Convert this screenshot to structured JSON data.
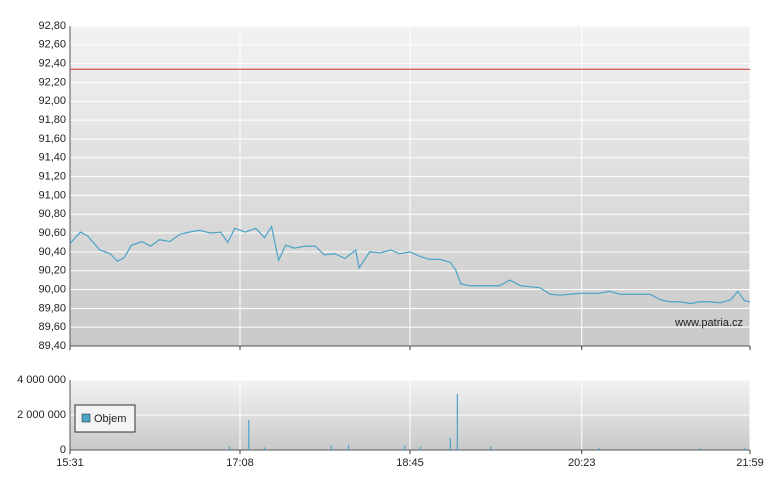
{
  "chart_data": [
    {
      "type": "line",
      "color": "#4ba3c8",
      "x": [
        "15:31",
        "15:37",
        "15:41",
        "15:48",
        "15:54",
        "15:58",
        "16:02",
        "16:06",
        "16:12",
        "16:17",
        "16:22",
        "16:28",
        "16:34",
        "16:39",
        "16:45",
        "16:51",
        "16:57",
        "17:01",
        "17:05",
        "17:11",
        "17:17",
        "17:22",
        "17:26",
        "17:30",
        "17:34",
        "17:39",
        "17:45",
        "17:51",
        "17:56",
        "18:02",
        "18:08",
        "18:14",
        "18:16",
        "18:22",
        "18:28",
        "18:34",
        "18:39",
        "18:45",
        "18:51",
        "18:56",
        "19:02",
        "19:08",
        "19:11",
        "19:14",
        "19:19",
        "19:25",
        "19:31",
        "19:36",
        "19:42",
        "19:48",
        "19:53",
        "19:59",
        "20:05",
        "20:11",
        "20:16",
        "20:22",
        "20:28",
        "20:33",
        "20:39",
        "20:45",
        "20:51",
        "20:56",
        "21:02",
        "21:08",
        "21:13",
        "21:19",
        "21:25",
        "21:30",
        "21:36",
        "21:42",
        "21:48",
        "21:52",
        "21:56",
        "21:59"
      ],
      "values": [
        90.49,
        90.61,
        90.57,
        90.42,
        90.38,
        90.3,
        90.34,
        90.47,
        90.51,
        90.46,
        90.53,
        90.51,
        90.59,
        90.61,
        90.63,
        90.6,
        90.61,
        90.5,
        90.65,
        90.61,
        90.65,
        90.55,
        90.67,
        90.31,
        90.47,
        90.44,
        90.46,
        90.46,
        90.37,
        90.38,
        90.33,
        90.42,
        90.23,
        90.4,
        90.39,
        90.42,
        90.38,
        90.4,
        90.35,
        90.32,
        90.32,
        90.29,
        90.21,
        90.06,
        90.04,
        90.04,
        90.04,
        90.04,
        90.1,
        90.04,
        90.03,
        90.02,
        89.95,
        89.94,
        89.95,
        89.96,
        89.96,
        89.96,
        89.98,
        89.95,
        89.95,
        89.95,
        89.95,
        89.89,
        89.87,
        89.87,
        89.85,
        89.87,
        89.87,
        89.86,
        89.89,
        89.98,
        89.88,
        89.87
      ],
      "ylim": [
        89.4,
        92.8
      ],
      "yticks": [
        {
          "value": 92.8,
          "label": "92,80"
        },
        {
          "value": 92.6,
          "label": "92,60"
        },
        {
          "value": 92.4,
          "label": "92,40"
        },
        {
          "value": 92.2,
          "label": "92,20"
        },
        {
          "value": 92.0,
          "label": "92,00"
        },
        {
          "value": 91.8,
          "label": "91,80"
        },
        {
          "value": 91.6,
          "label": "91,60"
        },
        {
          "value": 91.4,
          "label": "91,40"
        },
        {
          "value": 91.2,
          "label": "91,20"
        },
        {
          "value": 91.0,
          "label": "91,00"
        },
        {
          "value": 90.8,
          "label": "90,80"
        },
        {
          "value": 90.6,
          "label": "90,60"
        },
        {
          "value": 90.4,
          "label": "90,40"
        },
        {
          "value": 90.2,
          "label": "90,20"
        },
        {
          "value": 90.0,
          "label": "90,00"
        },
        {
          "value": 89.8,
          "label": "89,80"
        },
        {
          "value": 89.6,
          "label": "89,60"
        },
        {
          "value": 89.4,
          "label": "89,40"
        }
      ],
      "reference_value": 92.34,
      "reference_color": "#cc3333",
      "annotation": "www.patria.cz",
      "grid": true
    },
    {
      "type": "bar",
      "x": [
        "16:22",
        "17:02",
        "17:13",
        "17:22",
        "18:00",
        "18:10",
        "18:42",
        "18:51",
        "19:08",
        "19:12",
        "19:31",
        "20:33",
        "21:30",
        "21:56"
      ],
      "series": [
        {
          "name": "Objem",
          "color": "#4ba3c8",
          "values": [
            50000,
            200000,
            1710000,
            150000,
            250000,
            300000,
            250000,
            200000,
            690000,
            3200000,
            200000,
            100000,
            100000,
            100000
          ]
        }
      ],
      "xlim": [
        "15:31",
        "21:59"
      ],
      "xticks": [
        "15:31",
        "17:08",
        "18:45",
        "20:23",
        "21:59"
      ],
      "ylim": [
        0,
        4000000
      ],
      "yticks": [
        {
          "value": 4000000,
          "label": "4 000 000"
        },
        {
          "value": 2000000,
          "label": "2 000 000"
        },
        0
      ],
      "grid": true,
      "legend": "top-left"
    }
  ]
}
